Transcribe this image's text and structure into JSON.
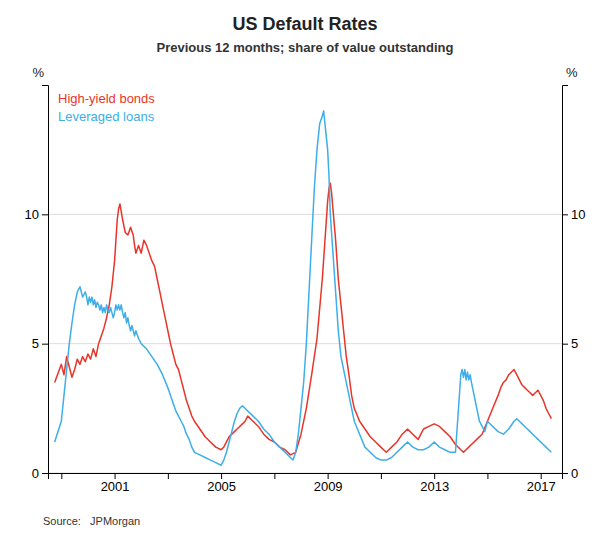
{
  "chart_data": {
    "type": "line",
    "title": "US Default Rates",
    "subtitle": "Previous 12 months; share of value outstanding",
    "source": "Source:   JPMorgan",
    "y_label": "%",
    "y2_label": "%",
    "xlim": [
      1998.5,
      2017.8
    ],
    "xticks": [
      {
        "value": 1999,
        "label": null
      },
      2001,
      {
        "value": 2003,
        "label": null
      },
      2005,
      {
        "value": 2007,
        "label": null
      },
      2009,
      {
        "value": 2011,
        "label": null
      },
      2013,
      {
        "value": 2015,
        "label": null
      },
      2017
    ],
    "ylim": [
      0,
      15
    ],
    "yticks": [
      0,
      5,
      10
    ],
    "y2lim": [
      0,
      15
    ],
    "y2ticks": [
      0,
      5,
      10
    ],
    "grid": "y",
    "legend": "upper left",
    "series": [
      {
        "name": "High-yield bonds",
        "color": "#e8352a",
        "x": [
          1998.75,
          1999.0,
          1999.1,
          1999.2,
          1999.3,
          1999.4,
          1999.5,
          1999.6,
          1999.7,
          1999.8,
          1999.9,
          2000.0,
          2000.1,
          2000.2,
          2000.3,
          2000.4,
          2000.5,
          2000.6,
          2000.7,
          2000.8,
          2000.9,
          2001.0,
          2001.05,
          2001.1,
          2001.15,
          2001.2,
          2001.25,
          2001.3,
          2001.4,
          2001.5,
          2001.6,
          2001.7,
          2001.75,
          2001.8,
          2001.9,
          2002.0,
          2002.1,
          2002.2,
          2002.3,
          2002.4,
          2002.5,
          2002.6,
          2002.7,
          2002.8,
          2002.9,
          2003.0,
          2003.1,
          2003.2,
          2003.3,
          2003.4,
          2003.5,
          2003.6,
          2003.7,
          2003.8,
          2003.9,
          2004.0,
          2004.2,
          2004.4,
          2004.6,
          2004.8,
          2005.0,
          2005.1,
          2005.2,
          2005.3,
          2005.4,
          2005.5,
          2005.6,
          2005.7,
          2005.8,
          2005.9,
          2006.0,
          2006.2,
          2006.4,
          2006.6,
          2006.8,
          2007.0,
          2007.2,
          2007.4,
          2007.6,
          2007.8,
          2008.0,
          2008.2,
          2008.4,
          2008.6,
          2008.8,
          2009.0,
          2009.05,
          2009.1,
          2009.15,
          2009.2,
          2009.3,
          2009.4,
          2009.5,
          2009.6,
          2009.7,
          2009.8,
          2009.9,
          2010.0,
          2010.2,
          2010.4,
          2010.6,
          2010.8,
          2011.0,
          2011.2,
          2011.3,
          2011.4,
          2011.6,
          2011.8,
          2012.0,
          2012.2,
          2012.4,
          2012.5,
          2012.6,
          2012.8,
          2013.0,
          2013.2,
          2013.4,
          2013.6,
          2013.8,
          2014.0,
          2014.1,
          2014.2,
          2014.3,
          2014.4,
          2014.6,
          2014.8,
          2015.0,
          2015.2,
          2015.4,
          2015.5,
          2015.6,
          2015.7,
          2015.8,
          2016.0,
          2016.1,
          2016.2,
          2016.3,
          2016.4,
          2016.5,
          2016.6,
          2016.7,
          2016.8,
          2016.9,
          2017.0,
          2017.1,
          2017.2,
          2017.3,
          2017.4
        ],
        "values": [
          3.5,
          4.2,
          3.8,
          4.5,
          4.1,
          3.7,
          4.0,
          4.4,
          4.2,
          4.5,
          4.3,
          4.6,
          4.4,
          4.8,
          4.5,
          5.0,
          5.3,
          5.6,
          6.0,
          6.5,
          7.2,
          8.2,
          9.0,
          9.8,
          10.2,
          10.4,
          10.1,
          9.8,
          9.3,
          9.2,
          9.5,
          9.2,
          8.8,
          8.5,
          8.8,
          8.5,
          9.0,
          8.8,
          8.5,
          8.2,
          8.0,
          7.5,
          7.0,
          6.5,
          6.0,
          5.5,
          5.0,
          4.6,
          4.2,
          4.0,
          3.6,
          3.2,
          2.8,
          2.5,
          2.2,
          2.0,
          1.7,
          1.4,
          1.2,
          1.0,
          0.9,
          1.0,
          1.2,
          1.4,
          1.5,
          1.6,
          1.7,
          1.8,
          1.9,
          2.0,
          2.2,
          2.0,
          1.8,
          1.5,
          1.3,
          1.2,
          1.0,
          0.9,
          0.7,
          0.8,
          1.5,
          2.5,
          3.8,
          5.2,
          7.5,
          10.5,
          11.0,
          11.2,
          10.8,
          10.2,
          9.0,
          7.5,
          6.5,
          5.5,
          4.5,
          3.8,
          3.0,
          2.5,
          2.0,
          1.7,
          1.4,
          1.2,
          1.0,
          0.8,
          0.9,
          1.0,
          1.2,
          1.5,
          1.7,
          1.5,
          1.3,
          1.5,
          1.7,
          1.8,
          1.9,
          1.8,
          1.6,
          1.4,
          1.1,
          0.9,
          0.8,
          0.9,
          1.0,
          1.1,
          1.3,
          1.5,
          2.0,
          2.5,
          3.0,
          3.3,
          3.5,
          3.6,
          3.8,
          4.0,
          3.8,
          3.6,
          3.4,
          3.3,
          3.2,
          3.1,
          3.0,
          3.1,
          3.2,
          3.0,
          2.8,
          2.5,
          2.3,
          2.1
        ]
      },
      {
        "name": "Leveraged loans",
        "color": "#3daee9",
        "x": [
          1998.75,
          1999.0,
          1999.1,
          1999.2,
          1999.3,
          1999.4,
          1999.5,
          1999.6,
          1999.7,
          1999.75,
          1999.8,
          1999.85,
          1999.9,
          1999.95,
          2000.0,
          2000.05,
          2000.1,
          2000.15,
          2000.2,
          2000.25,
          2000.3,
          2000.35,
          2000.4,
          2000.45,
          2000.5,
          2000.55,
          2000.6,
          2000.65,
          2000.7,
          2000.75,
          2000.8,
          2000.85,
          2000.9,
          2000.95,
          2001.0,
          2001.05,
          2001.1,
          2001.15,
          2001.2,
          2001.25,
          2001.3,
          2001.35,
          2001.4,
          2001.45,
          2001.5,
          2001.55,
          2001.6,
          2001.65,
          2001.7,
          2001.75,
          2001.8,
          2001.9,
          2002.0,
          2002.2,
          2002.4,
          2002.6,
          2002.8,
          2003.0,
          2003.1,
          2003.2,
          2003.3,
          2003.4,
          2003.5,
          2003.6,
          2003.7,
          2003.8,
          2003.9,
          2004.0,
          2004.2,
          2004.4,
          2004.6,
          2004.8,
          2005.0,
          2005.1,
          2005.2,
          2005.3,
          2005.4,
          2005.5,
          2005.6,
          2005.7,
          2005.8,
          2005.9,
          2006.0,
          2006.2,
          2006.4,
          2006.6,
          2006.8,
          2007.0,
          2007.2,
          2007.4,
          2007.6,
          2007.7,
          2007.8,
          2007.9,
          2008.0,
          2008.1,
          2008.2,
          2008.3,
          2008.4,
          2008.5,
          2008.6,
          2008.7,
          2008.8,
          2008.85,
          2008.9,
          2009.0,
          2009.05,
          2009.1,
          2009.2,
          2009.3,
          2009.4,
          2009.5,
          2009.6,
          2009.7,
          2009.8,
          2009.9,
          2010.0,
          2010.2,
          2010.4,
          2010.6,
          2010.8,
          2011.0,
          2011.2,
          2011.4,
          2011.6,
          2011.8,
          2012.0,
          2012.2,
          2012.4,
          2012.6,
          2012.8,
          2013.0,
          2013.2,
          2013.4,
          2013.6,
          2013.8,
          2014.0,
          2014.05,
          2014.1,
          2014.15,
          2014.2,
          2014.25,
          2014.3,
          2014.35,
          2014.4,
          2014.5,
          2014.6,
          2014.7,
          2014.8,
          2014.9,
          2015.0,
          2015.2,
          2015.4,
          2015.6,
          2015.8,
          2016.0,
          2016.1,
          2016.2,
          2016.3,
          2016.4,
          2016.5,
          2016.6,
          2016.7,
          2016.8,
          2016.9,
          2017.0,
          2017.1,
          2017.2,
          2017.3,
          2017.4
        ],
        "values": [
          1.2,
          2.0,
          3.0,
          4.0,
          5.0,
          5.8,
          6.5,
          7.0,
          7.2,
          7.0,
          6.8,
          6.9,
          7.0,
          6.8,
          6.5,
          6.8,
          6.6,
          6.8,
          6.5,
          6.7,
          6.4,
          6.6,
          6.5,
          6.3,
          6.5,
          6.2,
          6.4,
          6.2,
          6.5,
          6.3,
          6.2,
          6.4,
          6.2,
          6.0,
          6.2,
          6.5,
          6.3,
          6.5,
          6.3,
          6.5,
          6.2,
          6.0,
          6.2,
          5.8,
          6.0,
          5.7,
          5.5,
          5.7,
          5.5,
          5.3,
          5.5,
          5.2,
          5.0,
          4.8,
          4.5,
          4.2,
          3.8,
          3.3,
          3.0,
          2.7,
          2.4,
          2.2,
          2.0,
          1.8,
          1.5,
          1.3,
          1.0,
          0.8,
          0.7,
          0.6,
          0.5,
          0.4,
          0.3,
          0.5,
          0.8,
          1.2,
          1.6,
          2.0,
          2.3,
          2.5,
          2.6,
          2.5,
          2.4,
          2.2,
          2.0,
          1.7,
          1.5,
          1.2,
          1.0,
          0.8,
          0.6,
          0.5,
          0.8,
          1.5,
          2.5,
          3.5,
          5.0,
          7.0,
          9.0,
          11.0,
          12.5,
          13.5,
          13.8,
          14.0,
          13.5,
          12.5,
          11.5,
          10.0,
          8.5,
          7.0,
          5.5,
          4.5,
          4.0,
          3.5,
          3.0,
          2.5,
          2.0,
          1.5,
          1.0,
          0.8,
          0.6,
          0.5,
          0.5,
          0.6,
          0.8,
          1.0,
          1.2,
          1.0,
          0.9,
          0.9,
          1.0,
          1.2,
          1.0,
          0.9,
          0.8,
          0.8,
          3.8,
          4.0,
          3.7,
          4.0,
          3.6,
          3.9,
          3.6,
          3.8,
          3.5,
          3.0,
          2.5,
          2.0,
          1.8,
          1.6,
          2.0,
          1.8,
          1.6,
          1.5,
          1.7,
          2.0,
          2.1,
          2.0,
          1.9,
          1.8,
          1.7,
          1.6,
          1.5,
          1.4,
          1.3,
          1.2,
          1.1,
          1.0,
          0.9,
          0.8
        ]
      }
    ]
  }
}
